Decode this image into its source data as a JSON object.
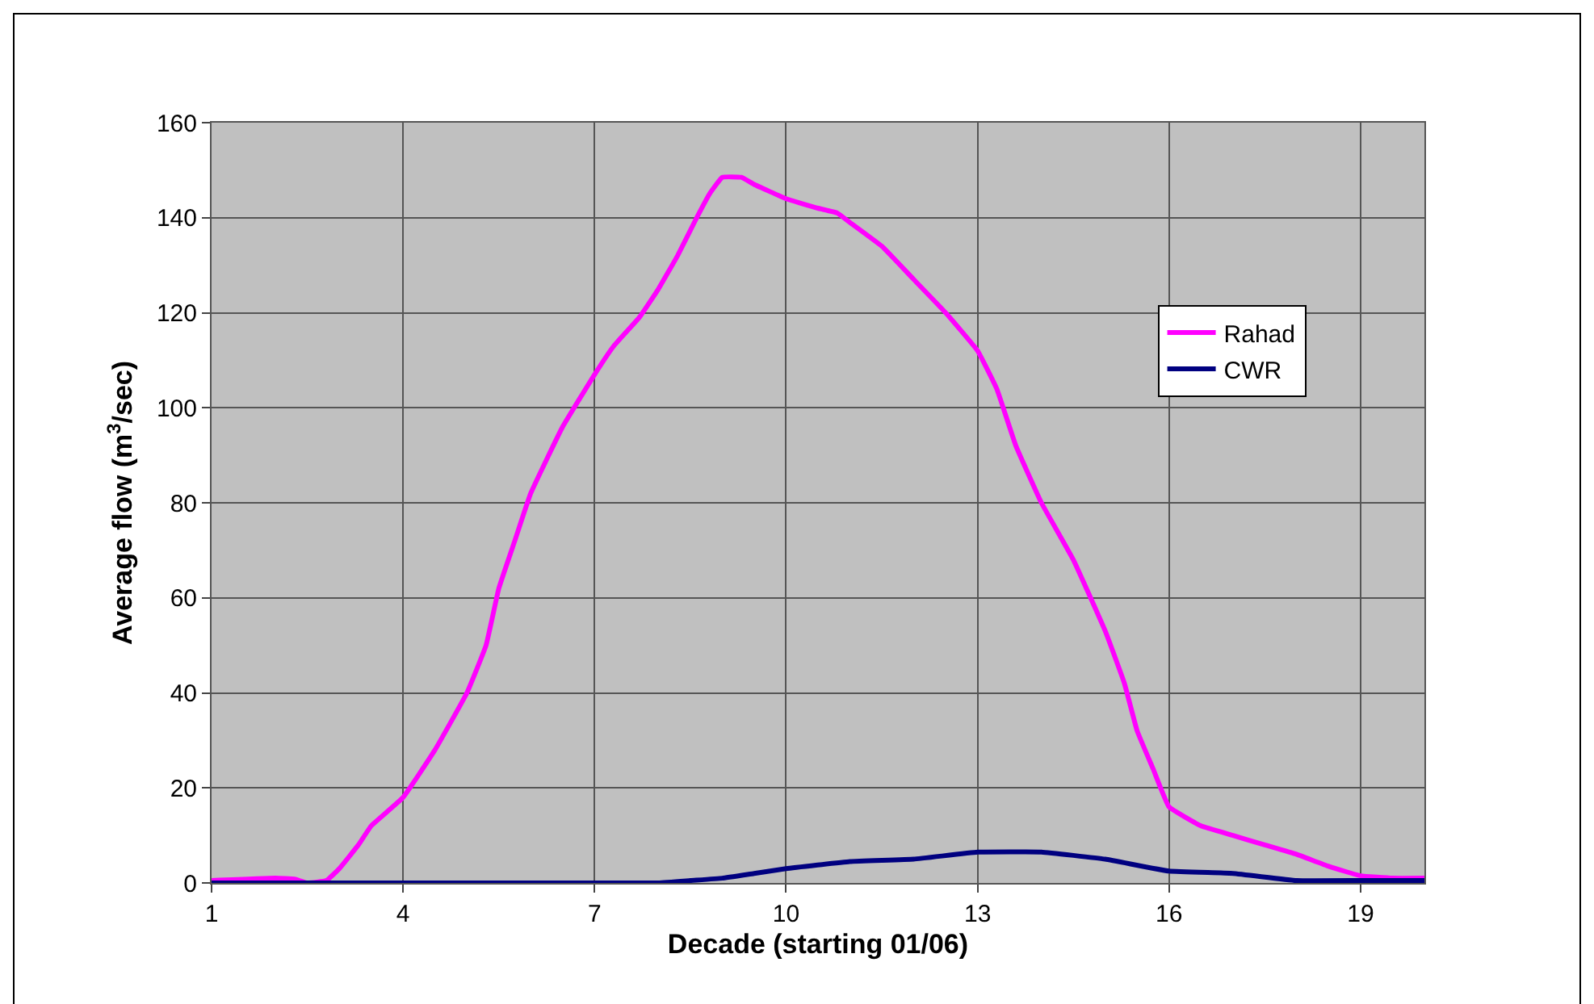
{
  "chart_data": {
    "type": "line",
    "xlabel": "Decade (starting 01/06)",
    "ylabel": "Average flow (m$^{3}$/sec)",
    "xlim": [
      1,
      20
    ],
    "xticks": [
      1,
      4,
      7,
      10,
      13,
      16,
      19
    ],
    "ylim": [
      0,
      160
    ],
    "yticks": [
      0,
      20,
      40,
      60,
      80,
      100,
      120,
      140,
      160
    ],
    "grid": true,
    "legend": "right",
    "marker": "none",
    "line_style": "solid",
    "series": [
      {
        "name": "Rahad",
        "color": "#ff00ff",
        "x": [
          1,
          2,
          2.3,
          2.5,
          2.8,
          3,
          3.3,
          3.5,
          4,
          4.5,
          5,
          5.3,
          5.5,
          5.75,
          6,
          6.5,
          7,
          7.3,
          7.7,
          8,
          8.3,
          8.6,
          8.8,
          9,
          9.3,
          9.5,
          10,
          10.5,
          10.8,
          11,
          11.5,
          12,
          12.5,
          13,
          13.3,
          13.6,
          14,
          14.5,
          15,
          15.3,
          15.5,
          15.75,
          16,
          16.5,
          17,
          17.5,
          18,
          18.5,
          19,
          19.5,
          20
        ],
        "values": [
          0.5,
          1,
          0.8,
          0,
          0.5,
          3,
          8,
          12,
          18,
          28,
          40,
          50,
          62,
          72,
          82,
          96,
          107,
          113,
          119,
          125,
          132,
          140,
          145,
          148.5,
          148.5,
          147,
          144,
          142,
          141,
          139,
          134,
          127,
          120,
          112,
          104,
          92,
          80,
          68,
          53,
          42,
          32,
          24,
          16,
          12,
          10,
          8,
          6,
          3.5,
          1.5,
          1,
          1
        ]
      },
      {
        "name": "CWR",
        "color": "#000080",
        "x": [
          1,
          8,
          8.5,
          9,
          9.5,
          10,
          11,
          12,
          13,
          14,
          15,
          16,
          17,
          18,
          19,
          20
        ],
        "values": [
          0,
          0,
          0.5,
          1,
          2,
          3,
          4.5,
          5,
          6.5,
          6.5,
          5,
          2.5,
          2,
          0.5,
          0.5,
          0.5
        ]
      }
    ]
  }
}
